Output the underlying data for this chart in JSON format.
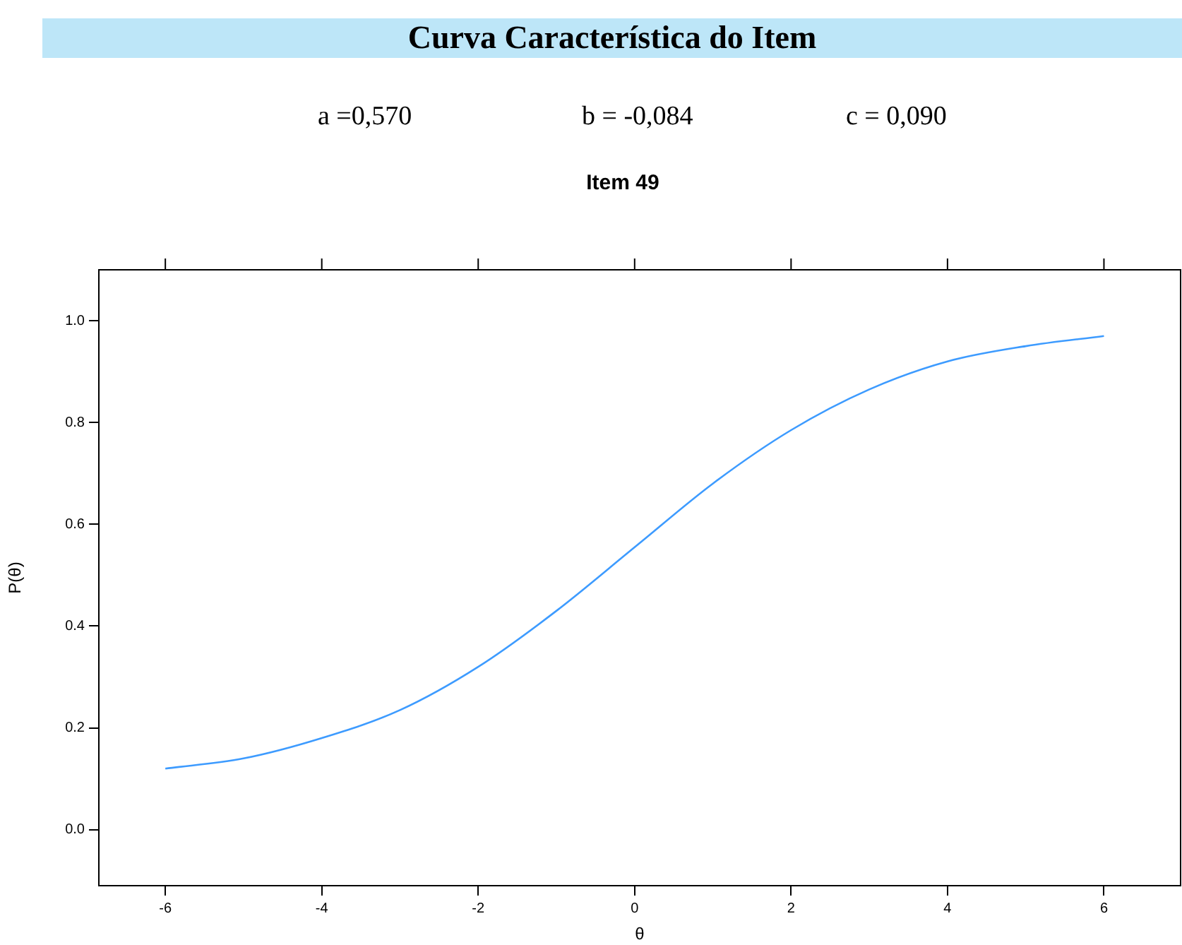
{
  "chart_data": {
    "type": "line",
    "title": "Curva Característica do Item",
    "subtitle": "Item 49",
    "annotations": [
      "a =0,570",
      "b = -0,084",
      "c = 0,090"
    ],
    "xlabel": "θ",
    "ylabel": "P(θ)",
    "x": [
      -6,
      -5,
      -4,
      -3,
      -2,
      -1,
      0,
      1,
      2,
      3,
      4,
      5,
      6
    ],
    "series": [
      {
        "color": "#3d9bff",
        "values": [
          0.12,
          0.14,
          0.18,
          0.235,
          0.32,
          0.43,
          0.555,
          0.68,
          0.785,
          0.865,
          0.92,
          0.95,
          0.97
        ]
      }
    ],
    "xlim": [
      -6.85,
      6.98
    ],
    "xticks": [
      -6,
      -4,
      -2,
      0,
      2,
      4,
      6
    ],
    "ylim": [
      -0.11,
      1.1
    ],
    "yticks": [
      {
        "value": 0,
        "label": "0.0"
      },
      {
        "value": 0.2,
        "label": "0.2"
      },
      {
        "value": 0.4,
        "label": "0.4"
      },
      {
        "value": 0.6,
        "label": "0.6"
      },
      {
        "value": 0.8,
        "label": "0.8"
      },
      {
        "value": 1,
        "label": "1.0"
      }
    ],
    "grid": false,
    "legend": false,
    "marker": "none",
    "line_style": "solid"
  }
}
